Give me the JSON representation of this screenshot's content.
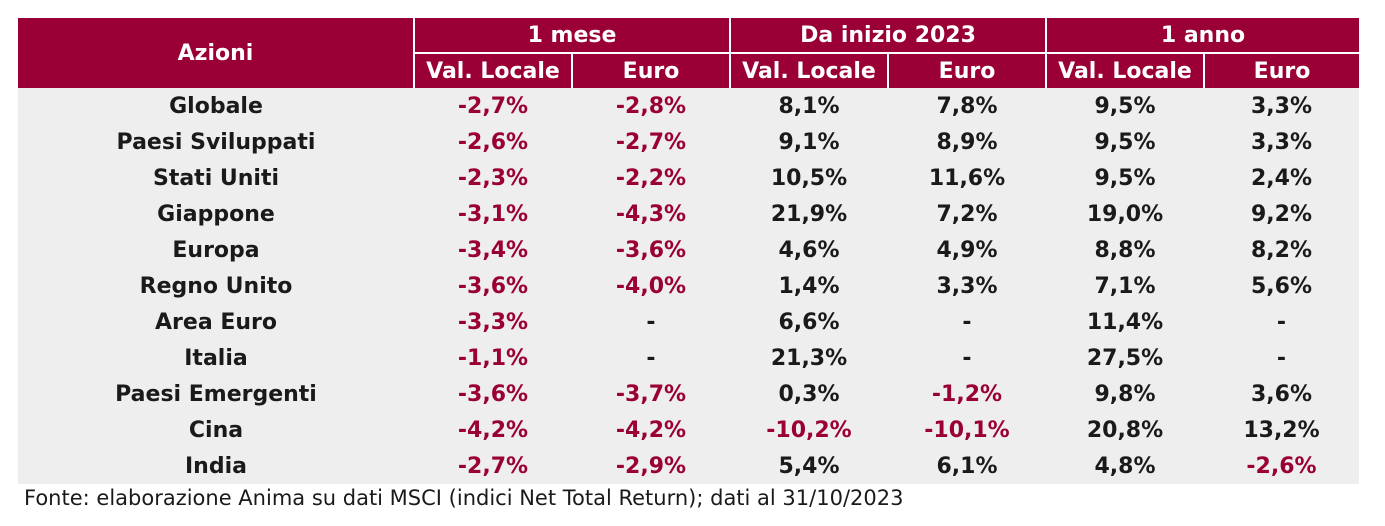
{
  "header": {
    "row_label": "Azioni",
    "groups": [
      "1 mese",
      "Da inizio 2023",
      "1 anno"
    ],
    "subheaders": [
      "Val. Locale",
      "Euro",
      "Val. Locale",
      "Euro",
      "Val. Locale",
      "Euro"
    ]
  },
  "rows": [
    {
      "name": "Globale",
      "values": [
        "-2,7%",
        "-2,8%",
        "8,1%",
        "7,8%",
        "9,5%",
        "3,3%"
      ]
    },
    {
      "name": "Paesi Sviluppati",
      "values": [
        "-2,6%",
        "-2,7%",
        "9,1%",
        "8,9%",
        "9,5%",
        "3,3%"
      ]
    },
    {
      "name": "Stati Uniti",
      "values": [
        "-2,3%",
        "-2,2%",
        "10,5%",
        "11,6%",
        "9,5%",
        "2,4%"
      ]
    },
    {
      "name": "Giappone",
      "values": [
        "-3,1%",
        "-4,3%",
        "21,9%",
        "7,2%",
        "19,0%",
        "9,2%"
      ]
    },
    {
      "name": "Europa",
      "values": [
        "-3,4%",
        "-3,6%",
        "4,6%",
        "4,9%",
        "8,8%",
        "8,2%"
      ]
    },
    {
      "name": "Regno Unito",
      "values": [
        "-3,6%",
        "-4,0%",
        "1,4%",
        "3,3%",
        "7,1%",
        "5,6%"
      ]
    },
    {
      "name": "Area Euro",
      "values": [
        "-3,3%",
        "-",
        "6,6%",
        "-",
        "11,4%",
        "-"
      ]
    },
    {
      "name": "Italia",
      "values": [
        "-1,1%",
        "-",
        "21,3%",
        "-",
        "27,5%",
        "-"
      ]
    },
    {
      "name": "Paesi Emergenti",
      "values": [
        "-3,6%",
        "-3,7%",
        "0,3%",
        "-1,2%",
        "9,8%",
        "3,6%"
      ]
    },
    {
      "name": "Cina",
      "values": [
        "-4,2%",
        "-4,2%",
        "-10,2%",
        "-10,1%",
        "20,8%",
        "13,2%"
      ]
    },
    {
      "name": "India",
      "values": [
        "-2,7%",
        "-2,9%",
        "5,4%",
        "6,1%",
        "4,8%",
        "-2,6%"
      ]
    }
  ],
  "footnote": "Fonte: elaborazione Anima su dati MSCI (indici Net Total Return); dati al 31/10/2023",
  "colors": {
    "header_bg": "#9a0036",
    "header_text": "#ffffff",
    "row_bg": "#eeeeee",
    "negative_text": "#9a0036",
    "positive_text": "#1a1a1a"
  }
}
